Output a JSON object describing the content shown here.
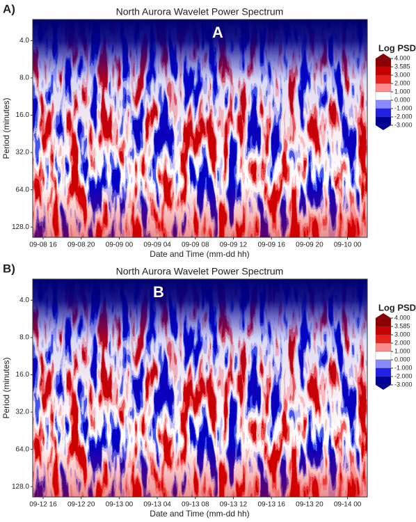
{
  "chart_data": [
    {
      "type": "heatmap",
      "panel_label": "A)",
      "annotation": "A",
      "title": "North Aurora Wavelet Power Spectrum",
      "xlabel": "Date and Time (mm-dd hh)",
      "ylabel": "Period (minutes)",
      "xticks": [
        "09-08 16",
        "09-08 20",
        "09-09 00",
        "09-09 04",
        "09-09 08",
        "09-09 12",
        "09-09 16",
        "09-09 20",
        "09-10 00"
      ],
      "ylim": [
        2.7,
        155
      ],
      "log_y": true,
      "y_inverted": true,
      "yticks": [
        {
          "value": 4,
          "label": "4.0"
        },
        {
          "value": 8,
          "label": "8.0"
        },
        {
          "value": 16,
          "label": "16.0"
        },
        {
          "value": 32,
          "label": "32.0"
        },
        {
          "value": 64,
          "label": "64.0"
        },
        {
          "value": 128,
          "label": "128.0"
        }
      ],
      "colorbar": {
        "title": "Log PSD",
        "levels": [
          {
            "value": 4,
            "label": "4.000"
          },
          {
            "value": 3.585,
            "label": "3.585"
          },
          {
            "value": 3,
            "label": "3.000"
          },
          {
            "value": 2,
            "label": "2.000"
          },
          {
            "value": 1,
            "label": "1.000"
          },
          {
            "value": 0,
            "label": "0.000"
          },
          {
            "value": -1,
            "label": "-1.000"
          },
          {
            "value": -2,
            "label": "-2.000"
          },
          {
            "value": -3,
            "label": "-3.000"
          }
        ],
        "colors": [
          "#8b0000",
          "#c40000",
          "#e8231e",
          "#ff8c8c",
          "#ffffff",
          "#8a8aff",
          "#2222e6",
          "#000094"
        ]
      }
    },
    {
      "type": "heatmap",
      "panel_label": "B)",
      "annotation": "B",
      "title": "North Aurora Wavelet Power Spectrum",
      "xlabel": "Date and Time (mm-dd hh)",
      "ylabel": "Period (minutes)",
      "xticks": [
        "09-12 16",
        "09-12 20",
        "09-13 00",
        "09-13 04",
        "09-13 08",
        "09-13 12",
        "09-13 16",
        "09-13 20",
        "09-14 00"
      ],
      "ylim": [
        2.7,
        155
      ],
      "log_y": true,
      "y_inverted": true,
      "yticks": [
        {
          "value": 4,
          "label": "4.0"
        },
        {
          "value": 8,
          "label": "8.0"
        },
        {
          "value": 16,
          "label": "16.0"
        },
        {
          "value": 32,
          "label": "32.0"
        },
        {
          "value": 64,
          "label": "64.0"
        },
        {
          "value": 128,
          "label": "128.0"
        }
      ],
      "colorbar": {
        "title": "Log PSD",
        "levels": [
          {
            "value": 4,
            "label": "4.000"
          },
          {
            "value": 3.585,
            "label": "3.585"
          },
          {
            "value": 3,
            "label": "3.000"
          },
          {
            "value": 2,
            "label": "2.000"
          },
          {
            "value": 1,
            "label": "1.000"
          },
          {
            "value": 0,
            "label": "0.000"
          },
          {
            "value": -1,
            "label": "-1.000"
          },
          {
            "value": -2,
            "label": "-2.000"
          },
          {
            "value": -3,
            "label": "-3.000"
          }
        ],
        "colors": [
          "#8b0000",
          "#c40000",
          "#e8231e",
          "#ff8c8c",
          "#ffffff",
          "#8a8aff",
          "#2222e6",
          "#000094"
        ]
      }
    }
  ]
}
